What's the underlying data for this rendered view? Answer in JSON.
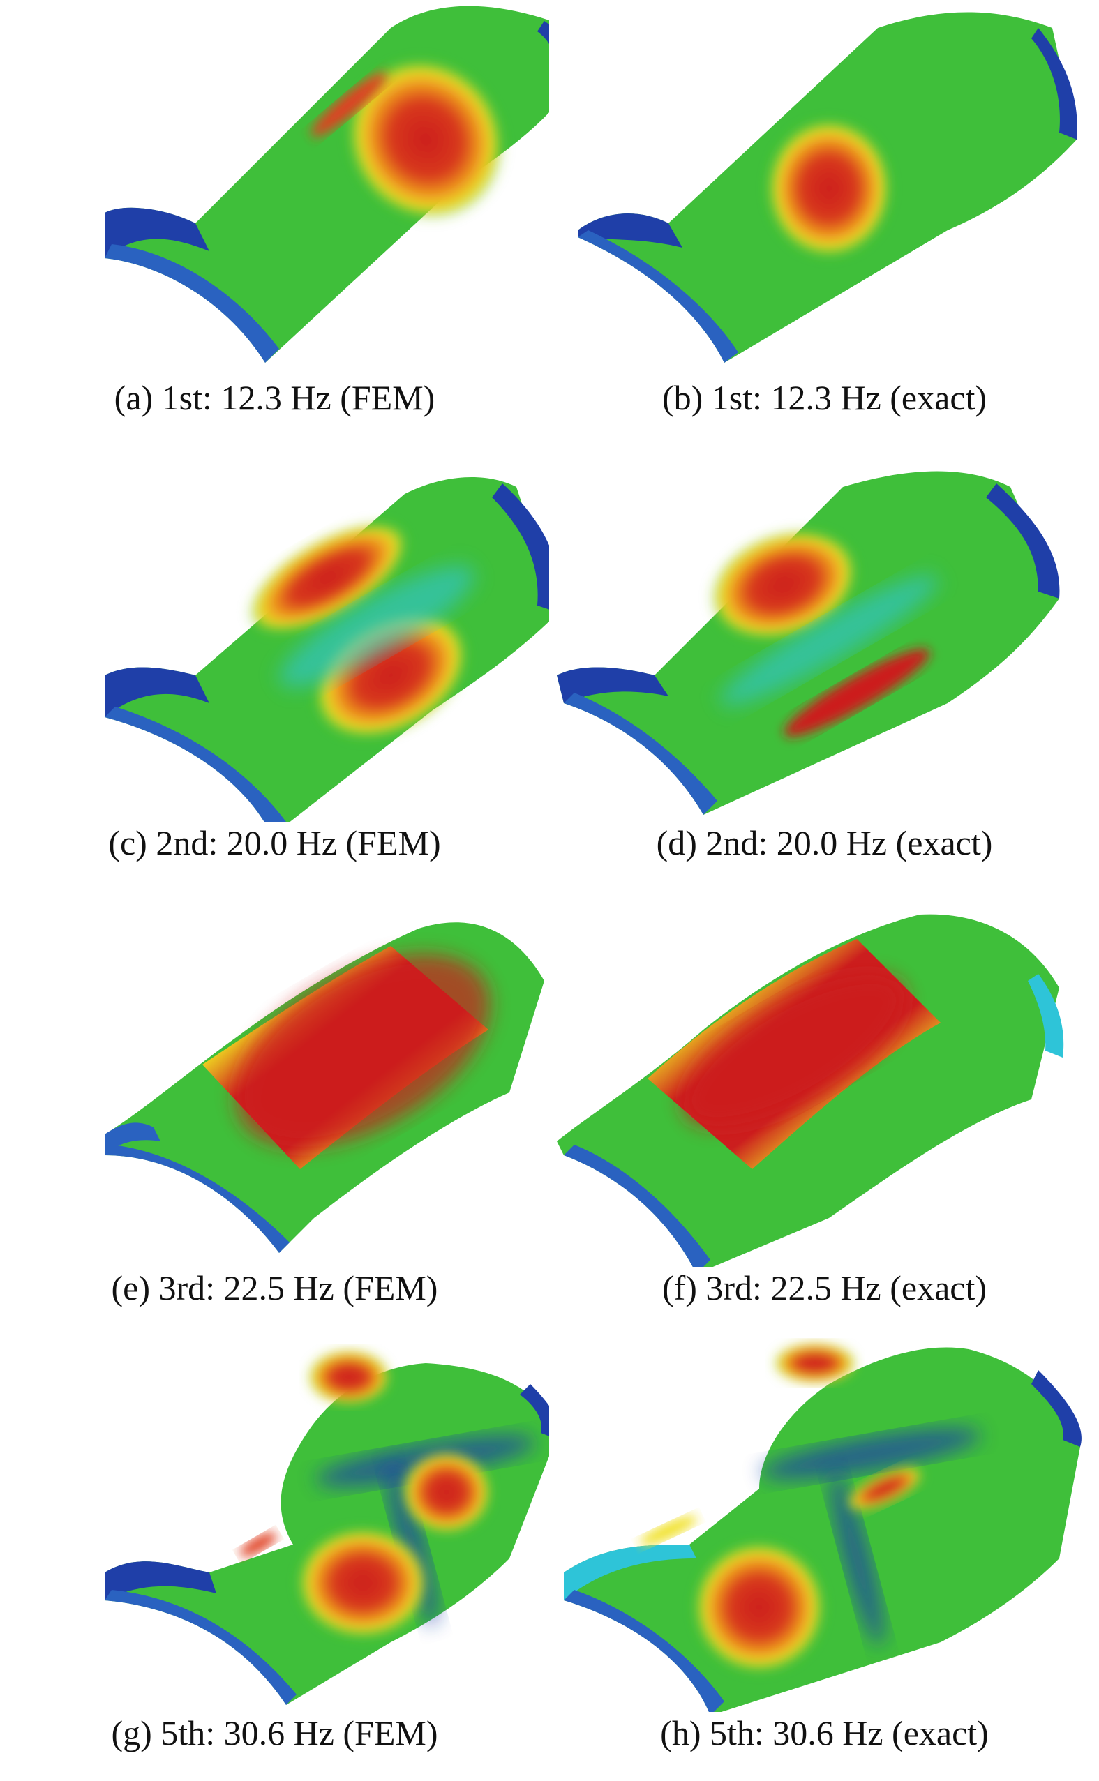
{
  "colormap": {
    "low": "#1f3fa8",
    "mid_low": "#2ec4d8",
    "mid": "#3fbf3a",
    "mid_high": "#f0e020",
    "high": "#cc1f1f"
  },
  "panels": [
    {
      "caption": "(a) 1st: 12.3 Hz (FEM)"
    },
    {
      "caption": "(b) 1st: 12.3 Hz (exact)"
    },
    {
      "caption": "(c) 2nd: 20.0 Hz (FEM)"
    },
    {
      "caption": "(d) 2nd: 20.0 Hz (exact)"
    },
    {
      "caption": "(e) 3rd: 22.5 Hz (FEM)"
    },
    {
      "caption": "(f) 3rd: 22.5 Hz (exact)"
    },
    {
      "caption": "(g) 5th: 30.6 Hz (FEM)"
    },
    {
      "caption": "(h) 5th: 30.6 Hz (exact)"
    }
  ]
}
